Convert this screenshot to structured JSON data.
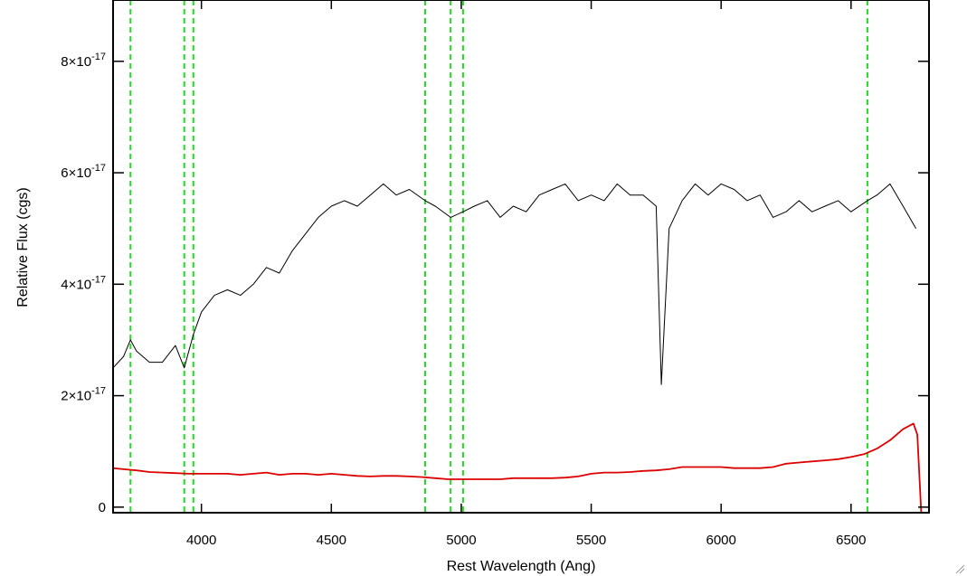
{
  "chart_data": {
    "type": "line",
    "xlabel": "Rest Wavelength (Ang)",
    "ylabel": "Relative Flux (cgs)",
    "xlim": [
      3660,
      6800
    ],
    "ylim": [
      -1e-18,
      9.1e-17
    ],
    "x_ticks": [
      {
        "value": 4000,
        "label": "4000"
      },
      {
        "value": 4500,
        "label": "4500"
      },
      {
        "value": 5000,
        "label": "5000"
      },
      {
        "value": 5500,
        "label": "5500"
      },
      {
        "value": 6000,
        "label": "6000"
      },
      {
        "value": 6500,
        "label": "6500"
      }
    ],
    "y_ticks": [
      {
        "value": 0,
        "mantissa": "0",
        "exp": ""
      },
      {
        "value": 2e-17,
        "mantissa": "2×10",
        "exp": "-17"
      },
      {
        "value": 4e-17,
        "mantissa": "4×10",
        "exp": "-17"
      },
      {
        "value": 6e-17,
        "mantissa": "6×10",
        "exp": "-17"
      },
      {
        "value": 8e-17,
        "mantissa": "8×10",
        "exp": "-17"
      }
    ],
    "line_markers": {
      "color": "#22dd22",
      "style": "dashed",
      "x": [
        3727,
        3934,
        3969,
        4861,
        4959,
        5007,
        6563
      ]
    },
    "series": [
      {
        "color": "#000000",
        "style": "thin-line",
        "x": [
          3660,
          3700,
          3727,
          3750,
          3800,
          3850,
          3900,
          3934,
          3969,
          4000,
          4050,
          4100,
          4150,
          4200,
          4250,
          4300,
          4350,
          4400,
          4450,
          4500,
          4550,
          4600,
          4650,
          4700,
          4750,
          4800,
          4861,
          4900,
          4959,
          5007,
          5050,
          5100,
          5150,
          5200,
          5250,
          5300,
          5350,
          5400,
          5450,
          5500,
          5550,
          5600,
          5650,
          5700,
          5750,
          5770,
          5800,
          5850,
          5900,
          5950,
          6000,
          6050,
          6100,
          6150,
          6200,
          6250,
          6300,
          6350,
          6400,
          6450,
          6500,
          6563,
          6600,
          6650,
          6700,
          6750
        ],
        "y": [
          2.5e-17,
          2.7e-17,
          3e-17,
          2.8e-17,
          2.6e-17,
          2.6e-17,
          2.9e-17,
          2.5e-17,
          3.1e-17,
          3.5e-17,
          3.8e-17,
          3.9e-17,
          3.8e-17,
          4e-17,
          4.3e-17,
          4.2e-17,
          4.6e-17,
          4.9e-17,
          5.2e-17,
          5.4e-17,
          5.5e-17,
          5.4e-17,
          5.6e-17,
          5.8e-17,
          5.6e-17,
          5.7e-17,
          5.5e-17,
          5.4e-17,
          5.2e-17,
          5.3e-17,
          5.4e-17,
          5.5e-17,
          5.2e-17,
          5.4e-17,
          5.3e-17,
          5.6e-17,
          5.7e-17,
          5.8e-17,
          5.5e-17,
          5.6e-17,
          5.5e-17,
          5.8e-17,
          5.6e-17,
          5.6e-17,
          5.4e-17,
          2.2e-17,
          5e-17,
          5.5e-17,
          5.8e-17,
          5.6e-17,
          5.8e-17,
          5.7e-17,
          5.5e-17,
          5.6e-17,
          5.2e-17,
          5.3e-17,
          5.5e-17,
          5.3e-17,
          5.4e-17,
          5.5e-17,
          5.3e-17,
          5.5e-17,
          5.6e-17,
          5.8e-17,
          5.4e-17,
          5e-17
        ]
      },
      {
        "color": "#dd0000",
        "style": "line",
        "x": [
          3660,
          3700,
          3750,
          3800,
          3850,
          3900,
          3950,
          4000,
          4050,
          4100,
          4150,
          4200,
          4250,
          4300,
          4350,
          4400,
          4450,
          4500,
          4550,
          4600,
          4650,
          4700,
          4750,
          4800,
          4850,
          4900,
          4950,
          5000,
          5050,
          5100,
          5150,
          5200,
          5250,
          5300,
          5350,
          5400,
          5450,
          5500,
          5550,
          5600,
          5650,
          5700,
          5750,
          5800,
          5850,
          5900,
          5950,
          6000,
          6050,
          6100,
          6150,
          6200,
          6250,
          6300,
          6350,
          6400,
          6450,
          6500,
          6550,
          6600,
          6650,
          6700,
          6740,
          6755,
          6770
        ],
        "y": [
          7e-18,
          6.8e-18,
          6.6e-18,
          6.3e-18,
          6.2e-18,
          6.1e-18,
          6e-18,
          6e-18,
          6e-18,
          6e-18,
          5.8e-18,
          6e-18,
          6.2e-18,
          5.8e-18,
          6e-18,
          6e-18,
          5.8e-18,
          6e-18,
          5.8e-18,
          5.6e-18,
          5.5e-18,
          5.6e-18,
          5.6e-18,
          5.5e-18,
          5.4e-18,
          5.2e-18,
          5e-18,
          5e-18,
          5e-18,
          5e-18,
          5e-18,
          5.2e-18,
          5.2e-18,
          5.2e-18,
          5.2e-18,
          5.3e-18,
          5.5e-18,
          6e-18,
          6.2e-18,
          6.2e-18,
          6.3e-18,
          6.5e-18,
          6.6e-18,
          6.8e-18,
          7.2e-18,
          7.2e-18,
          7.2e-18,
          7.2e-18,
          7e-18,
          7e-18,
          7e-18,
          7.2e-18,
          7.8e-18,
          8e-18,
          8.2e-18,
          8.4e-18,
          8.6e-18,
          9e-18,
          9.5e-18,
          1.05e-17,
          1.2e-17,
          1.4e-17,
          1.5e-17,
          1.3e-17,
          -1e-18
        ]
      }
    ]
  }
}
